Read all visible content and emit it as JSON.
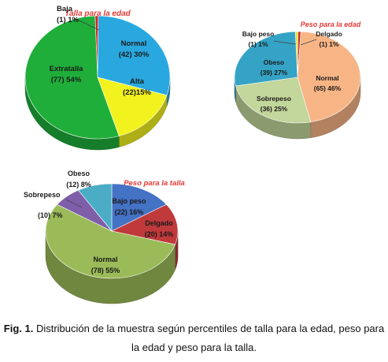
{
  "chart_data": [
    {
      "type": "pie",
      "title": "Talla para la edad",
      "slices": [
        {
          "name": "Baja",
          "count": 1,
          "percent": 1,
          "value_label": "(1) 1%",
          "color": "#c62828"
        },
        {
          "name": "Normal",
          "count": 42,
          "percent": 30,
          "value_label": "(42) 30%",
          "color": "#29a8df"
        },
        {
          "name": "Alta",
          "count": 22,
          "percent": 15,
          "value_label": "(22)15%",
          "color": "#f2f21e"
        },
        {
          "name": "Extratalla",
          "count": 77,
          "percent": 54,
          "value_label": "(77) 54%",
          "color": "#1fae3a"
        }
      ]
    },
    {
      "type": "pie",
      "title": "Peso para la edad",
      "slices": [
        {
          "name": "Bajo peso",
          "count": 1,
          "percent": 1,
          "value_label": "(1) 1%",
          "color": "#f0dc28"
        },
        {
          "name": "Delgado",
          "count": 1,
          "percent": 1,
          "value_label": "(1) 1%",
          "color": "#c62828"
        },
        {
          "name": "Normal",
          "count": 65,
          "percent": 46,
          "value_label": "(65) 46%",
          "color": "#f7b586"
        },
        {
          "name": "Sobrepeso",
          "count": 36,
          "percent": 25,
          "value_label": "(36) 25%",
          "color": "#c3d69b"
        },
        {
          "name": "Obeso",
          "count": 39,
          "percent": 27,
          "value_label": "(39) 27%",
          "color": "#34a3c5"
        }
      ]
    },
    {
      "type": "pie",
      "title": "Peso para la talla",
      "slices": [
        {
          "name": "Bajo peso",
          "count": 22,
          "percent": 16,
          "value_label": "(22) 16%",
          "color": "#4472c4"
        },
        {
          "name": "Delgado",
          "count": 20,
          "percent": 14,
          "value_label": "(20) 14%",
          "color": "#c0393b"
        },
        {
          "name": "Normal",
          "count": 78,
          "percent": 55,
          "value_label": "(78) 55%",
          "color": "#9bbb59"
        },
        {
          "name": "Sobrepeso",
          "count": 10,
          "percent": 7,
          "value_label": "(10) 7%",
          "color": "#7e5ea8"
        },
        {
          "name": "Obeso",
          "count": 12,
          "percent": 8,
          "value_label": "(12) 8%",
          "color": "#4bacc6"
        }
      ]
    }
  ],
  "caption": {
    "label": "Fig. 1.",
    "text": "Distribución de la muestra según percentiles de talla para la edad, peso para la edad y peso para la talla."
  }
}
